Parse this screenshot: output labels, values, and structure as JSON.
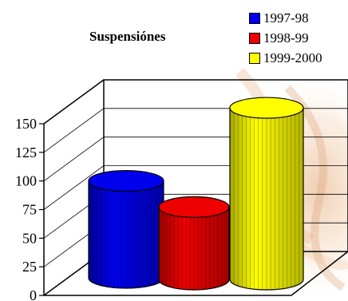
{
  "chart_data": {
    "type": "bar",
    "title": "Suspensiónes",
    "categories": [
      ""
    ],
    "series": [
      {
        "name": "1997-98",
        "values": [
          83
        ],
        "color": "#0000ee"
      },
      {
        "name": "1998-99",
        "values": [
          62
        ],
        "color": "#ee0000"
      },
      {
        "name": "1999-2000",
        "values": [
          147
        ],
        "color": "#ffff00"
      }
    ],
    "yticks": [
      "0",
      "25",
      "50",
      "75",
      "100",
      "125",
      "150"
    ],
    "ylim": [
      0,
      150
    ],
    "grid": true,
    "legend_position": "top-right",
    "style": "3d-cylinder",
    "xlabel": "",
    "ylabel": ""
  }
}
